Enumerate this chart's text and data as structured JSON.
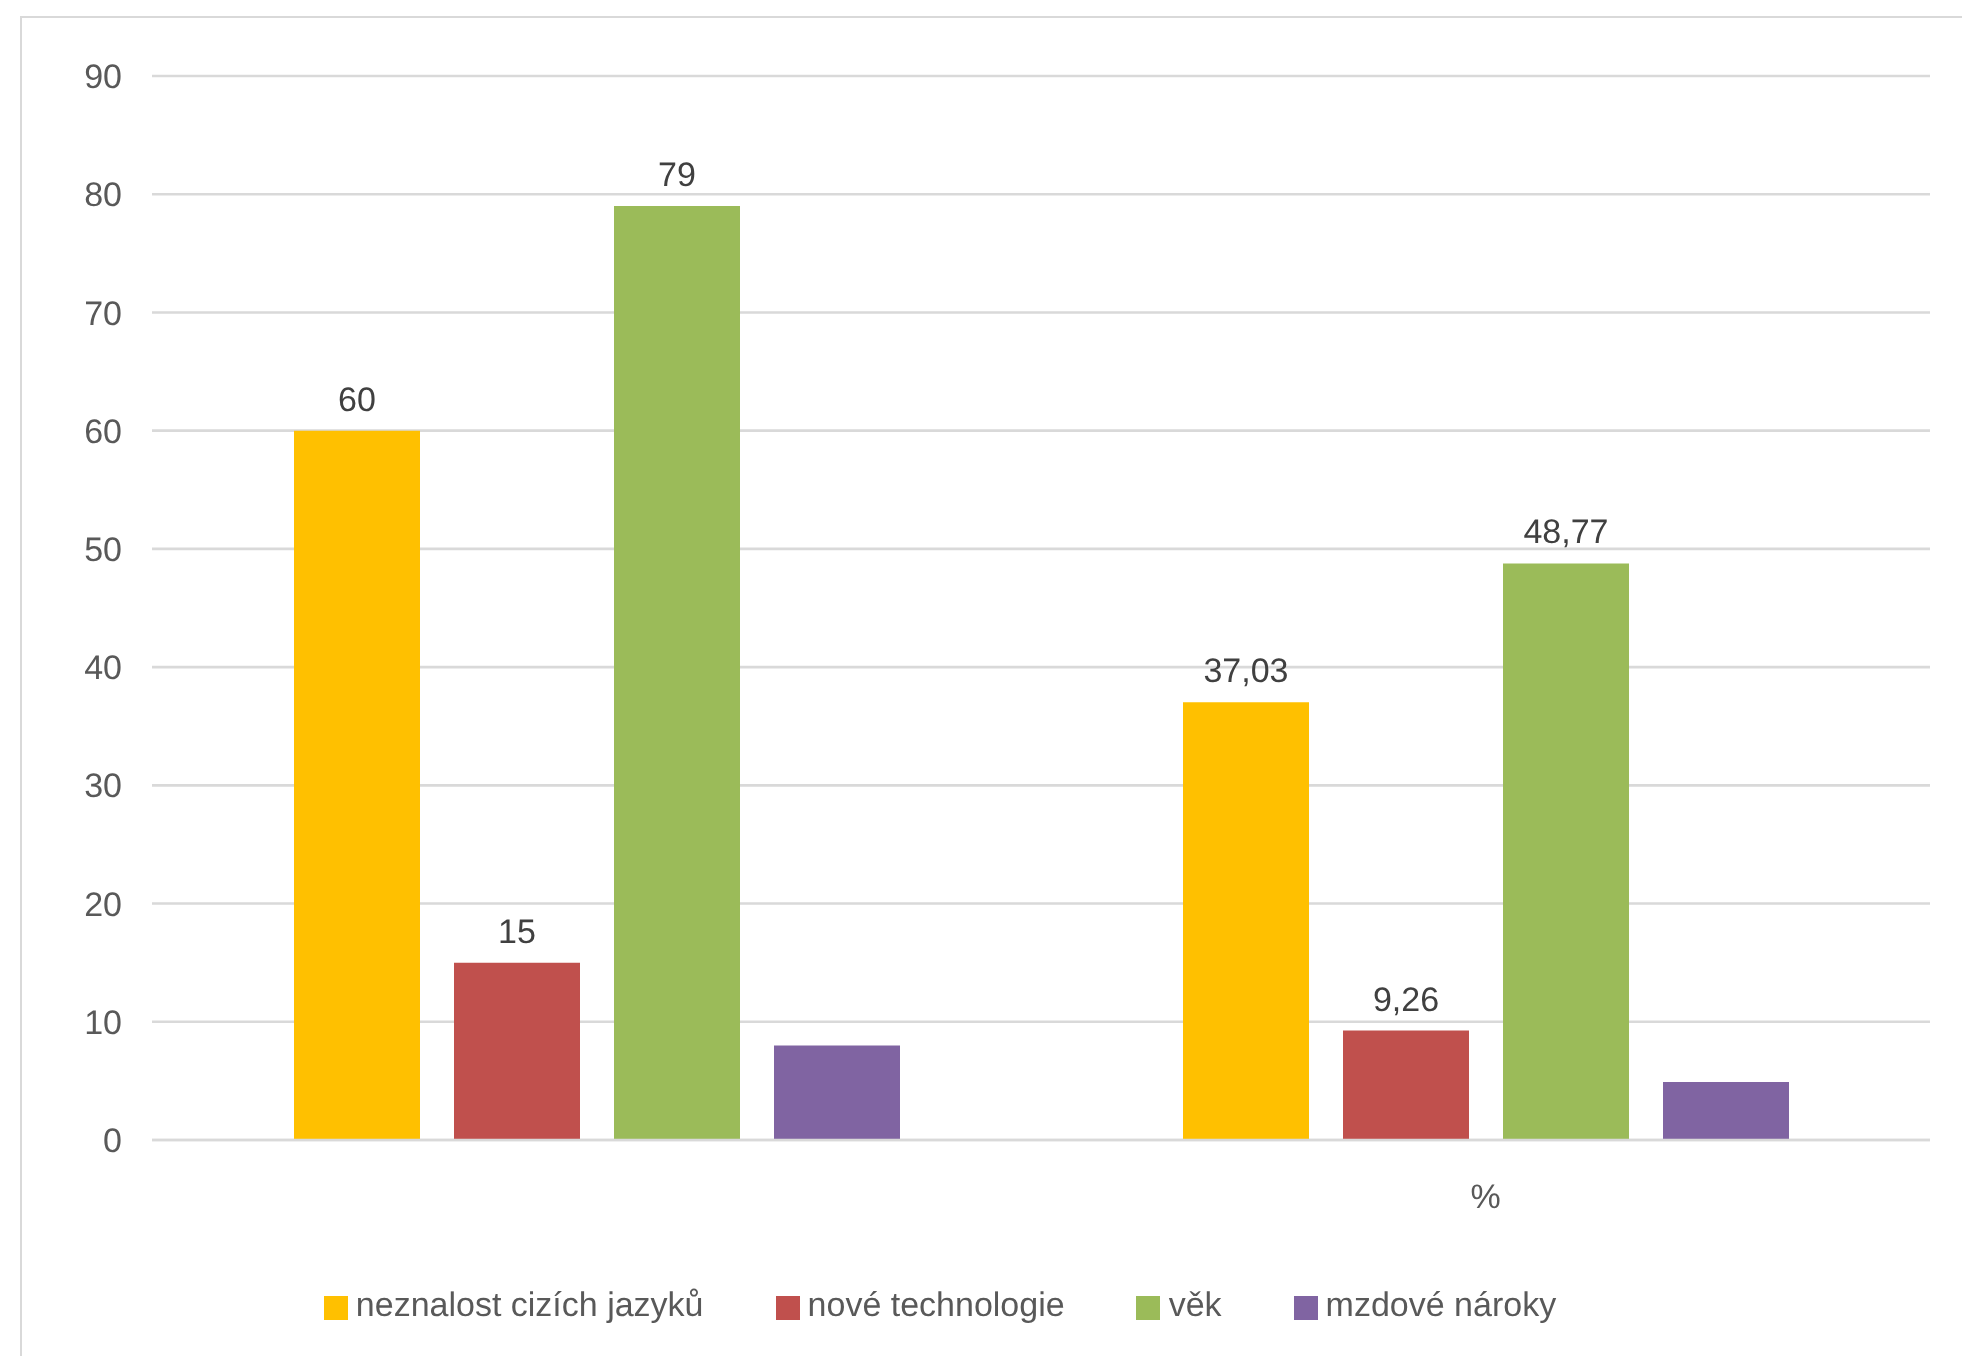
{
  "chart_data": {
    "type": "bar",
    "categories": [
      null,
      "%"
    ],
    "series": [
      {
        "name": "neznalost cizích jazyků",
        "color": "#ffc000",
        "values": [
          60,
          37.03
        ],
        "value_labels": [
          "60",
          "37,03"
        ]
      },
      {
        "name": "nové technologie",
        "color": "#c0504d",
        "values": [
          15,
          9.26
        ],
        "value_labels": [
          "15",
          "9,26"
        ]
      },
      {
        "name": "věk",
        "color": "#9bbb59",
        "values": [
          79,
          48.77
        ],
        "value_labels": [
          "79",
          "48,77"
        ]
      },
      {
        "name": "mzdové nároky",
        "color": "#8064a2",
        "values": [
          8,
          4.9
        ],
        "value_labels": [
          null,
          null
        ]
      }
    ],
    "ylim": [
      0,
      90
    ],
    "yticks": [
      0,
      10,
      20,
      30,
      40,
      50,
      60,
      70,
      80,
      90
    ],
    "grid": "y",
    "legend": "bottom"
  }
}
